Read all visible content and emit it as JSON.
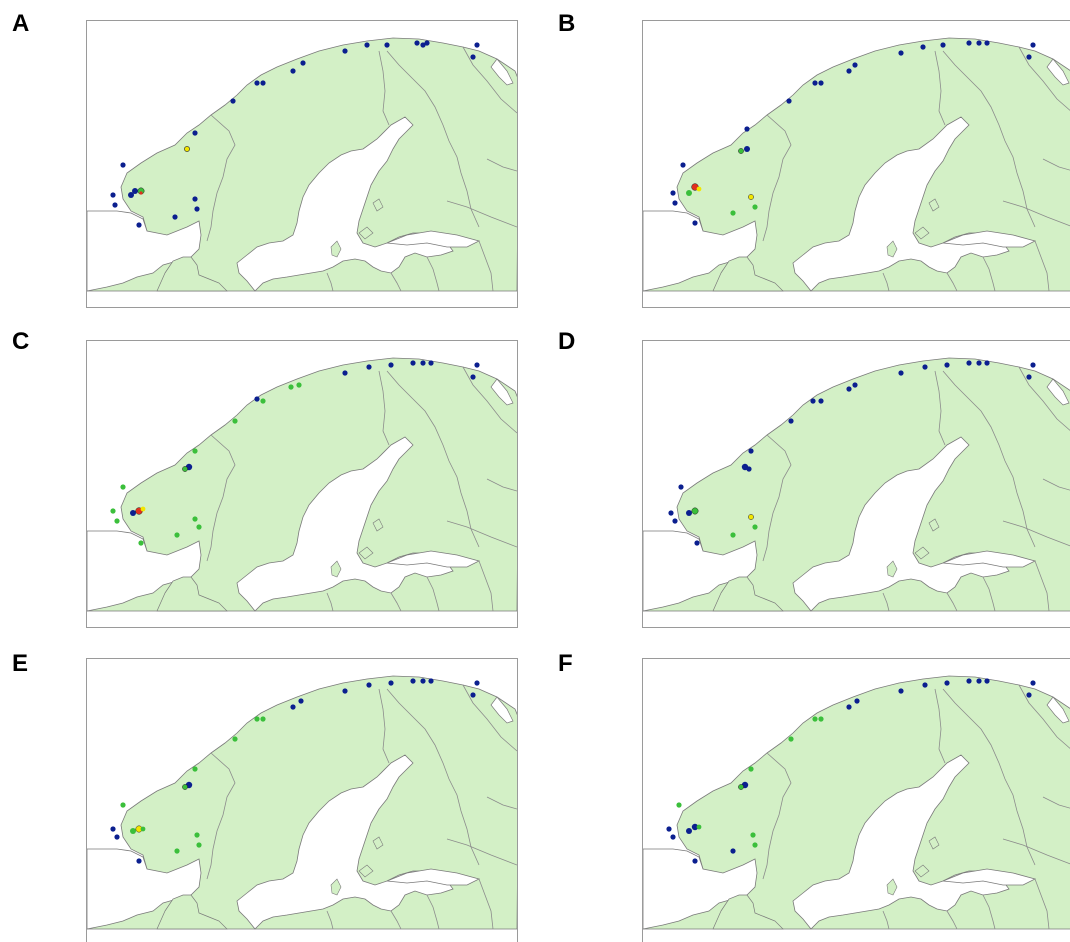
{
  "panels": [
    {
      "id": "A",
      "label": "A"
    },
    {
      "id": "B",
      "label": "B"
    },
    {
      "id": "C",
      "label": "C"
    },
    {
      "id": "D",
      "label": "D"
    },
    {
      "id": "E",
      "label": "E"
    },
    {
      "id": "F",
      "label": "F"
    }
  ],
  "colors": {
    "land": "#d3f0c6",
    "sea": "#ffffff",
    "border": "#8c8c8c",
    "coast": "#7a7a7a",
    "marker_blue": "#0b1f8f",
    "marker_green": "#3bbf3b",
    "marker_yellow": "#f2e600",
    "marker_red": "#e0301e"
  }
}
